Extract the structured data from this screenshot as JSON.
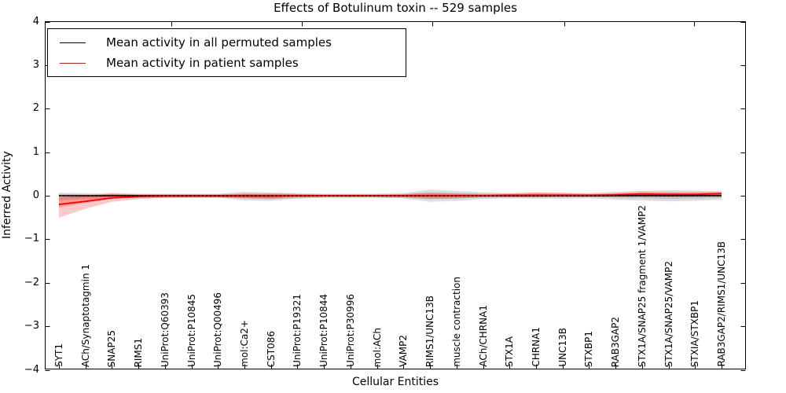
{
  "chart_data": {
    "type": "line",
    "title": "Effects of Botulinum toxin -- 529 samples",
    "xlabel": "Cellular Entities",
    "ylabel": "Inferred Activity",
    "ylim": [
      -4,
      4
    ],
    "y_ticks": [
      4,
      3,
      2,
      1,
      0,
      -1,
      -2,
      -3,
      -4
    ],
    "grid": false,
    "legend_position": "upper left",
    "categories": [
      "SYT1",
      "ACh/Synaptotagmin 1",
      "SNAP25",
      "RIMS1",
      "UniProt:Q60393",
      "UniProt:P10845",
      "UniProt:Q00496",
      "mol:Ca2+",
      "CST086",
      "UniProt:P19321",
      "UniProt:P10844",
      "UniProt:P30996",
      "mol:ACh",
      "VAMP2",
      "RIMS1/UNC13B",
      "muscle contraction",
      "ACh/CHRNA1",
      "STX1A",
      "CHRNA1",
      "UNC13B",
      "STXBP1",
      "RAB3GAP2",
      "STX1A/SNAP25 fragment 1/VAMP2",
      "STX1A/SNAP25/VAMP2",
      "STXIA/STXBP1",
      "RAB3GAP2/RIMS1/UNC13B"
    ],
    "series": [
      {
        "name": "Mean activity in all permuted samples",
        "color": "#000000",
        "values": [
          0,
          0,
          0,
          0,
          0,
          0,
          0,
          0,
          0,
          0,
          0,
          0,
          0,
          0,
          0,
          0,
          0,
          0,
          0,
          0,
          0,
          0,
          0,
          0,
          0,
          0
        ],
        "band_upper": [
          0.07,
          0.06,
          0.05,
          0.05,
          0.05,
          0.05,
          0.05,
          0.09,
          0.08,
          0.06,
          0.05,
          0.05,
          0.05,
          0.06,
          0.14,
          0.11,
          0.08,
          0.06,
          0.07,
          0.07,
          0.06,
          0.09,
          0.11,
          0.13,
          0.12,
          0.09
        ],
        "band_lower": [
          -0.11,
          -0.08,
          -0.06,
          -0.05,
          -0.05,
          -0.05,
          -0.05,
          -0.11,
          -0.12,
          -0.07,
          -0.05,
          -0.05,
          -0.05,
          -0.06,
          -0.14,
          -0.12,
          -0.08,
          -0.06,
          -0.07,
          -0.07,
          -0.06,
          -0.09,
          -0.11,
          -0.13,
          -0.12,
          -0.09
        ]
      },
      {
        "name": "Mean activity in patient samples",
        "color": "#ff0000",
        "values": [
          -0.2,
          -0.13,
          -0.05,
          -0.02,
          -0.01,
          -0.01,
          -0.01,
          -0.01,
          -0.01,
          0,
          0,
          0,
          0,
          0,
          0,
          0,
          0,
          0.01,
          0.01,
          0.01,
          0.01,
          0.02,
          0.04,
          0.03,
          0.03,
          0.05
        ],
        "band_upper": [
          -0.05,
          0.0,
          0.06,
          0.03,
          0.03,
          0.03,
          0.03,
          0.05,
          0.05,
          0.04,
          0.03,
          0.03,
          0.03,
          0.04,
          0.06,
          0.05,
          0.04,
          0.05,
          0.08,
          0.06,
          0.04,
          0.06,
          0.09,
          0.08,
          0.08,
          0.1
        ],
        "band_lower": [
          -0.5,
          -0.3,
          -0.14,
          -0.08,
          -0.05,
          -0.04,
          -0.04,
          -0.06,
          -0.08,
          -0.05,
          -0.04,
          -0.04,
          -0.04,
          -0.05,
          -0.07,
          -0.06,
          -0.04,
          -0.04,
          -0.04,
          -0.03,
          -0.03,
          -0.02,
          -0.02,
          -0.03,
          -0.02,
          -0.01
        ]
      }
    ]
  }
}
